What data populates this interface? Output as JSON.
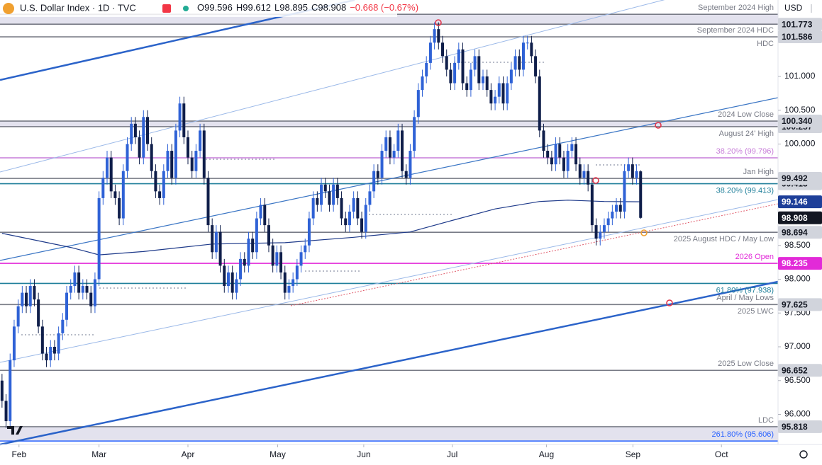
{
  "chart_data": {
    "type": "candlestick",
    "title": "U.S. Dollar Index · 1D · TVC",
    "ohlc_header": [
      "O99.596",
      "H99.612",
      "L98.895",
      "C98.908",
      "−0.668 (−0.67%)"
    ],
    "currency": "USD",
    "up_color": "#2f62d6",
    "down_color": "#0f1e4a",
    "ma_color": "#1e3a8a",
    "xlim": [
      -0.5,
      192
    ],
    "ylim": [
      95.555,
      102.131
    ],
    "xticks": [
      {
        "value": 4.2,
        "label": "Feb"
      },
      {
        "value": 24,
        "label": "Mar"
      },
      {
        "value": 46,
        "label": "Apr"
      },
      {
        "value": 68.2,
        "label": "May"
      },
      {
        "value": 89.5,
        "label": "Jun"
      },
      {
        "value": 111.4,
        "label": "Jul"
      },
      {
        "value": 134.7,
        "label": "Aug"
      },
      {
        "value": 156.1,
        "label": "Sep"
      },
      {
        "value": 178,
        "label": "Oct"
      }
    ],
    "yticks": [
      {
        "value": 101,
        "label": "101.000"
      },
      {
        "value": 100.5,
        "label": "100.500"
      },
      {
        "value": 100,
        "label": "100.000"
      },
      {
        "value": 98.5,
        "label": "98.500"
      },
      {
        "value": 98,
        "label": "98.000"
      },
      {
        "value": 97.5,
        "label": "97.500"
      },
      {
        "value": 97,
        "label": "97.000"
      },
      {
        "value": 96.5,
        "label": "96.500"
      },
      {
        "value": 96,
        "label": "96.000"
      }
    ],
    "open": [
      96.5,
      96.2,
      95.9,
      96.8,
      97.3,
      97.6,
      97.8,
      97.6,
      97.9,
      97.7,
      97.3,
      96.9,
      96.8,
      97.0,
      96.9,
      97.2,
      97.4,
      97.8,
      97.9,
      98.1,
      97.8,
      97.9,
      97.8,
      97.6,
      98.0,
      99.2,
      99.5,
      99.8,
      99.3,
      99.2,
      98.9,
      99.6,
      100.0,
      100.3,
      100.1,
      99.8,
      100.4,
      100.0,
      99.6,
      99.3,
      99.2,
      99.6,
      99.9,
      99.5,
      100.2,
      100.6,
      100.1,
      99.8,
      99.6,
      99.9,
      100.2,
      99.5,
      98.8,
      98.4,
      98.7,
      98.2,
      97.9,
      98.1,
      97.8,
      98.0,
      98.3,
      98.2,
      98.6,
      98.4,
      98.9,
      99.1,
      98.8,
      98.5,
      98.2,
      98.4,
      98.1,
      97.8,
      97.9,
      98.0,
      98.2,
      98.4,
      98.5,
      98.9,
      99.2,
      99.1,
      99.4,
      99.3,
      99.1,
      99.4,
      99.2,
      98.9,
      98.8,
      99.0,
      99.2,
      98.9,
      98.7,
      99.1,
      99.3,
      99.6,
      99.5,
      99.9,
      100.1,
      99.8,
      99.9,
      100.2,
      99.6,
      99.5,
      99.9,
      100.4,
      100.8,
      101.0,
      101.2,
      101.5,
      101.7,
      101.5,
      101.3,
      101.1,
      100.9,
      101.2,
      101.4,
      100.9,
      100.8,
      101.1,
      101.3,
      100.9,
      101.0,
      100.8,
      100.6,
      100.7,
      100.9,
      100.6,
      100.9,
      101.1,
      101.3,
      101.1,
      101.5,
      101.5,
      101.3,
      101.0,
      100.2,
      99.9,
      99.8,
      99.7,
      100.0,
      99.8,
      99.6,
      99.9,
      100.0,
      99.7,
      99.5,
      99.6,
      99.4,
      98.8,
      98.6,
      98.7,
      98.8,
      98.9,
      99.0,
      99.1,
      99.0,
      99.6,
      99.7,
      99.5,
      99.596
    ],
    "high": [
      96.6,
      96.3,
      96.9,
      97.4,
      97.7,
      97.9,
      97.9,
      98.0,
      98.0,
      97.8,
      97.4,
      97.0,
      97.1,
      97.1,
      97.3,
      97.5,
      97.9,
      98.0,
      98.2,
      98.2,
      98.0,
      98.0,
      97.9,
      98.1,
      99.3,
      99.6,
      99.9,
      99.9,
      99.4,
      99.3,
      99.7,
      100.1,
      100.4,
      100.4,
      100.2,
      100.5,
      100.5,
      100.1,
      99.7,
      99.4,
      99.7,
      100.0,
      100.0,
      100.3,
      100.7,
      100.7,
      100.2,
      99.9,
      100.0,
      100.3,
      100.3,
      99.6,
      98.9,
      98.8,
      98.8,
      98.3,
      98.2,
      98.2,
      98.1,
      98.4,
      98.4,
      98.7,
      98.7,
      99.0,
      99.2,
      99.2,
      98.9,
      98.6,
      98.5,
      98.5,
      98.2,
      98.0,
      98.1,
      98.3,
      98.5,
      98.6,
      99.0,
      99.3,
      99.3,
      99.5,
      99.5,
      99.4,
      99.5,
      99.5,
      99.3,
      99.0,
      99.1,
      99.3,
      99.3,
      99.0,
      99.2,
      99.4,
      99.7,
      99.7,
      100.0,
      100.2,
      100.2,
      100.0,
      100.3,
      100.3,
      99.7,
      100.0,
      100.5,
      100.9,
      101.1,
      101.3,
      101.6,
      101.8,
      101.8,
      101.6,
      101.4,
      101.2,
      101.3,
      101.5,
      101.5,
      101.0,
      101.2,
      101.4,
      101.4,
      101.1,
      101.1,
      100.9,
      100.8,
      101.0,
      101.0,
      101.0,
      101.2,
      101.4,
      101.4,
      101.6,
      101.6,
      101.6,
      101.4,
      101.1,
      100.3,
      100.0,
      99.9,
      100.1,
      100.1,
      99.9,
      100.0,
      100.1,
      100.1,
      99.8,
      99.7,
      99.7,
      99.5,
      98.9,
      98.8,
      98.9,
      99.0,
      99.1,
      99.2,
      99.2,
      99.7,
      99.8,
      99.8,
      99.7,
      99.612
    ],
    "low": [
      96.1,
      95.8,
      95.8,
      96.7,
      97.2,
      97.5,
      97.5,
      97.5,
      97.6,
      97.2,
      96.8,
      96.7,
      96.7,
      96.8,
      96.8,
      97.1,
      97.3,
      97.7,
      97.8,
      97.7,
      97.7,
      97.7,
      97.5,
      97.5,
      97.9,
      99.1,
      99.4,
      99.2,
      99.1,
      98.8,
      98.8,
      99.5,
      99.9,
      100.0,
      99.7,
      99.7,
      99.9,
      99.5,
      99.2,
      99.1,
      99.1,
      99.5,
      99.4,
      99.4,
      100.1,
      100.0,
      99.7,
      99.5,
      99.5,
      99.8,
      99.4,
      98.7,
      98.3,
      98.3,
      98.1,
      97.8,
      97.8,
      97.7,
      97.7,
      97.9,
      98.1,
      98.1,
      98.3,
      98.3,
      98.8,
      98.7,
      98.4,
      98.1,
      98.1,
      98.0,
      97.7,
      97.7,
      97.8,
      97.9,
      98.1,
      98.3,
      98.4,
      98.8,
      99.0,
      99.0,
      99.2,
      99.0,
      99.0,
      99.1,
      98.8,
      98.7,
      98.7,
      98.9,
      98.8,
      98.6,
      98.6,
      99.0,
      99.2,
      99.4,
      99.4,
      99.8,
      99.7,
      99.7,
      99.8,
      99.5,
      99.4,
      99.4,
      99.8,
      100.3,
      100.7,
      100.9,
      101.1,
      101.4,
      101.4,
      101.2,
      101.0,
      100.8,
      100.8,
      101.1,
      100.8,
      100.7,
      100.7,
      101.0,
      100.8,
      100.8,
      100.7,
      100.5,
      100.5,
      100.6,
      100.5,
      100.5,
      100.8,
      101.0,
      101.0,
      101.0,
      101.4,
      101.2,
      100.9,
      100.1,
      99.8,
      99.7,
      99.6,
      99.6,
      99.7,
      99.5,
      99.5,
      99.8,
      99.6,
      99.4,
      99.4,
      99.3,
      98.7,
      98.5,
      98.5,
      98.6,
      98.7,
      98.8,
      98.9,
      98.9,
      98.9,
      99.5,
      99.4,
      99.4,
      98.895
    ],
    "close": [
      96.2,
      95.9,
      96.8,
      97.3,
      97.6,
      97.8,
      97.6,
      97.9,
      97.7,
      97.3,
      96.9,
      96.8,
      97.0,
      96.9,
      97.2,
      97.4,
      97.8,
      97.9,
      98.1,
      97.8,
      97.9,
      97.8,
      97.6,
      98.0,
      99.2,
      99.5,
      99.8,
      99.3,
      99.2,
      98.9,
      99.6,
      100.0,
      100.3,
      100.1,
      99.8,
      100.4,
      100.0,
      99.6,
      99.3,
      99.2,
      99.6,
      99.9,
      99.5,
      100.2,
      100.6,
      100.1,
      99.8,
      99.6,
      99.9,
      100.2,
      99.5,
      98.8,
      98.4,
      98.7,
      98.2,
      97.9,
      98.1,
      97.8,
      98.0,
      98.3,
      98.2,
      98.6,
      98.4,
      98.9,
      99.1,
      98.8,
      98.5,
      98.2,
      98.4,
      98.1,
      97.8,
      97.9,
      98.0,
      98.2,
      98.4,
      98.5,
      98.9,
      99.2,
      99.1,
      99.4,
      99.3,
      99.1,
      99.4,
      99.2,
      98.9,
      98.8,
      99.0,
      99.2,
      98.9,
      98.7,
      99.1,
      99.3,
      99.6,
      99.5,
      99.9,
      100.1,
      99.8,
      99.9,
      100.2,
      99.6,
      99.5,
      99.9,
      100.4,
      100.8,
      101.0,
      101.2,
      101.5,
      101.7,
      101.5,
      101.3,
      101.1,
      100.9,
      101.2,
      101.4,
      100.9,
      100.8,
      101.1,
      101.3,
      100.9,
      101.0,
      100.8,
      100.6,
      100.7,
      100.9,
      100.6,
      100.9,
      101.1,
      101.3,
      101.1,
      101.5,
      101.5,
      101.3,
      101.0,
      100.2,
      99.9,
      99.8,
      99.7,
      100.0,
      99.8,
      99.6,
      99.9,
      100.0,
      99.7,
      99.5,
      99.6,
      99.4,
      98.8,
      98.6,
      98.7,
      98.8,
      98.9,
      99.0,
      99.1,
      99.0,
      99.6,
      99.7,
      99.5,
      99.6,
      98.908
    ],
    "ma": {
      "x": [
        0,
        17,
        24,
        35,
        52,
        70,
        87,
        101,
        112,
        122,
        133,
        140,
        149,
        158
      ],
      "values": [
        98.68,
        98.47,
        98.36,
        98.41,
        98.52,
        98.54,
        98.62,
        98.7,
        98.88,
        99.04,
        99.15,
        99.17,
        99.15,
        99.146
      ]
    },
    "zones": [
      [
        101.773,
        101.92
      ],
      [
        100.257,
        100.34
      ],
      [
        95.606,
        95.818
      ]
    ],
    "levels": [
      {
        "value": 101.92,
        "color": "#787b86",
        "label_above": "September 2024 High"
      },
      {
        "value": 101.773,
        "color": "#787b86"
      },
      {
        "value": 101.586,
        "color": "#787b86",
        "label_above": "September 2024 HDC",
        "label_below": "HDC"
      },
      {
        "value": 100.34,
        "color": "#787b86",
        "label_above": "2024 Low Close"
      },
      {
        "value": 100.257,
        "color": "#787b86",
        "label_below": "August 24' High"
      },
      {
        "value": 99.796,
        "color": "#c77dd8",
        "label_above": "38.20% (99.796)"
      },
      {
        "value": 99.492,
        "color": "#787b86",
        "label_above": "Jan High"
      },
      {
        "value": 99.413,
        "color": "#1f7f9a",
        "label_below": "38.20% (99.413)"
      },
      {
        "value": 98.694,
        "color": "#787b86",
        "label_below": "2025 August HDC / May Low"
      },
      {
        "value": 98.235,
        "color": "#e22ad8",
        "label_above": "2026 Open"
      },
      {
        "value": 97.938,
        "color": "#1f7f9a",
        "label_below": "61.80% (97.938)"
      },
      {
        "value": 97.625,
        "color": "#787b86",
        "label_above": "April / May Lows",
        "label_below": "2025 LWC"
      },
      {
        "value": 96.652,
        "color": "#787b86",
        "label_above": "2025 Low Close"
      },
      {
        "value": 95.818,
        "color": "#787b86",
        "label_above": "LDC"
      },
      {
        "value": 95.606,
        "color": "#2962ff",
        "label_above": "261.80% (95.606)"
      }
    ],
    "price_tags": [
      {
        "value": 101.586,
        "bg": "#d1d4dc",
        "fg": "#131722"
      },
      {
        "value": 101.773,
        "bg": "#d1d4dc",
        "fg": "#131722"
      },
      {
        "value": 100.257,
        "bg": "#d1d4dc",
        "fg": "#131722"
      },
      {
        "value": 100.34,
        "label": "100.340",
        "bg": "#d1d4dc",
        "fg": "#131722"
      },
      {
        "value": 99.413,
        "bg": "#d1d4dc",
        "fg": "#131722"
      },
      {
        "value": 99.492,
        "bg": "#d1d4dc",
        "fg": "#131722"
      },
      {
        "value": 99.146,
        "bg": "#1e3f99",
        "fg": "#ffffff"
      },
      {
        "value": 98.908,
        "bg": "#131722",
        "fg": "#ffffff"
      },
      {
        "value": 98.694,
        "bg": "#d1d4dc",
        "fg": "#131722"
      },
      {
        "value": 98.235,
        "bg": "#e22ad8",
        "fg": "#ffffff"
      },
      {
        "value": 97.625,
        "bg": "#d1d4dc",
        "fg": "#131722"
      },
      {
        "value": 96.652,
        "bg": "#d1d4dc",
        "fg": "#131722"
      },
      {
        "value": 95.818,
        "bg": "#d1d4dc",
        "fg": "#131722"
      }
    ]
  }
}
